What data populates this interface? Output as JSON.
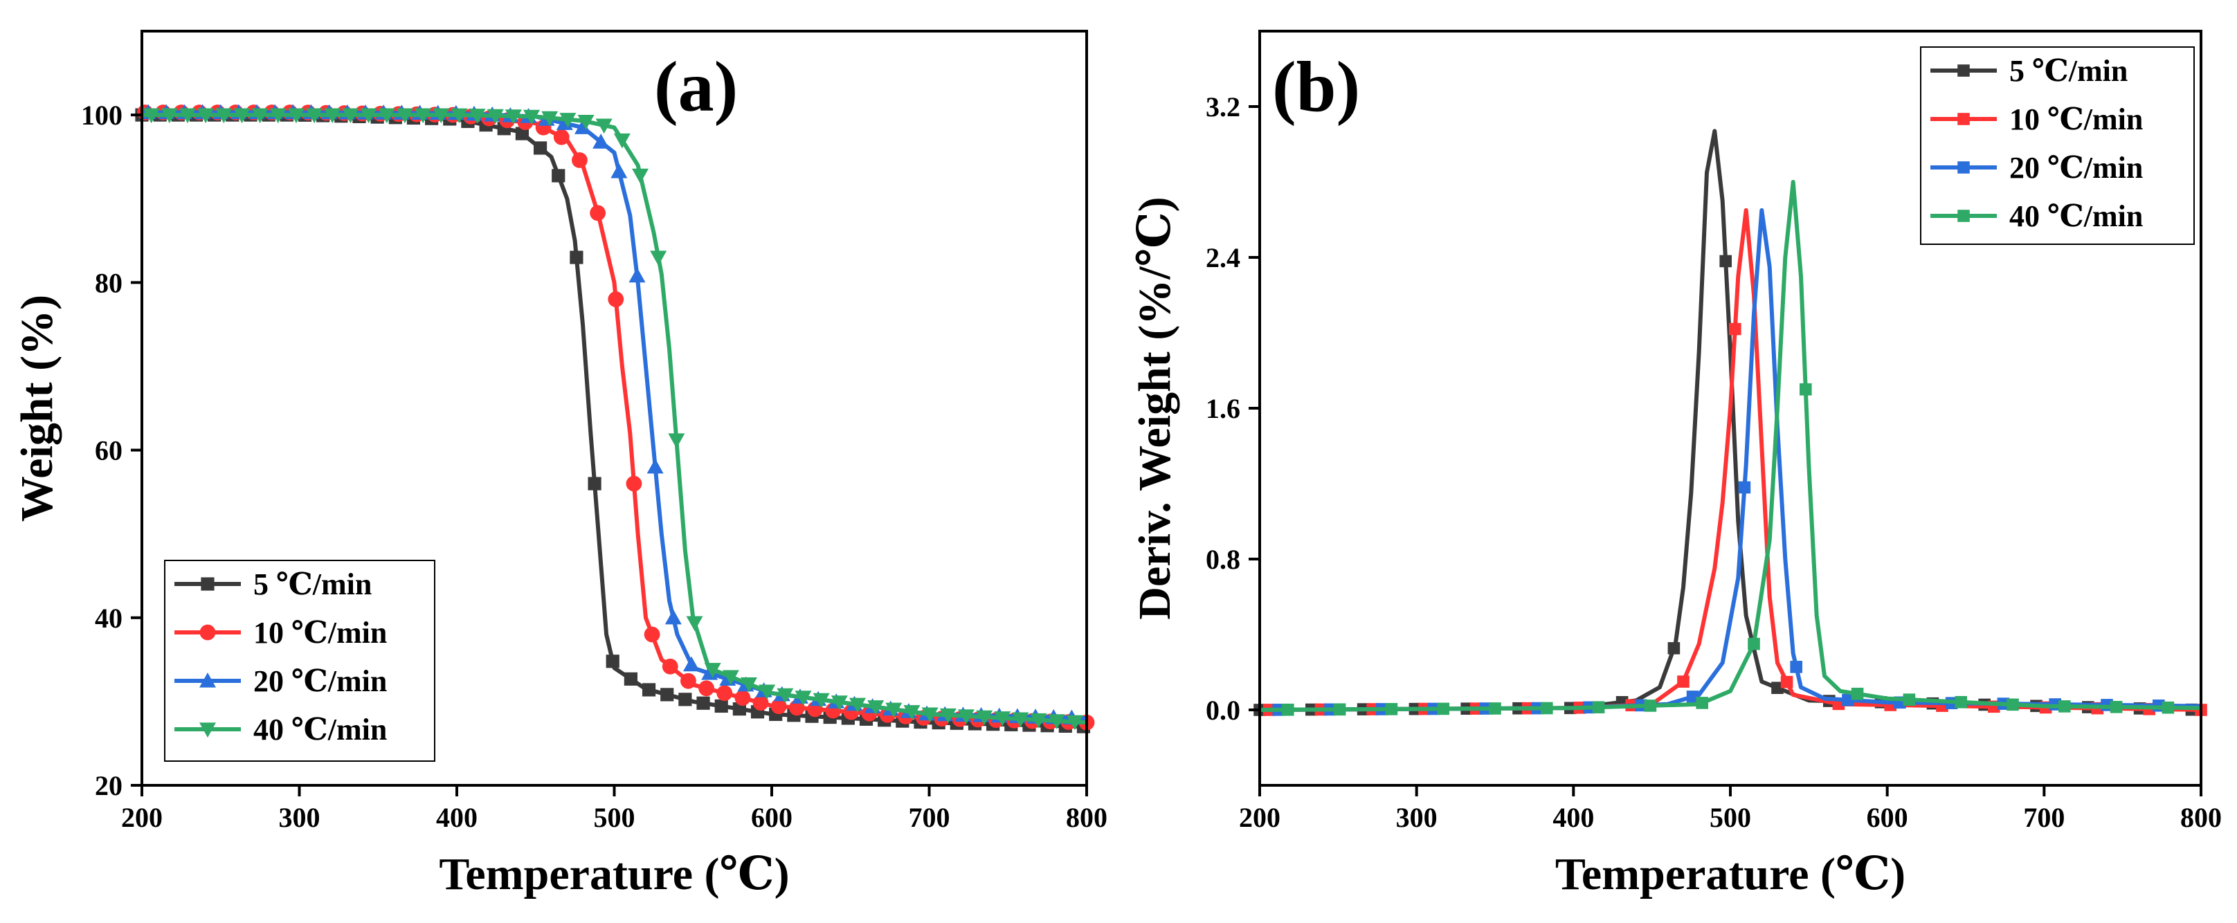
{
  "figure": {
    "panel_a_label": "(a)",
    "panel_b_label": "(b)"
  },
  "chart_data": [
    {
      "type": "line",
      "panel": "(a)",
      "xlabel": "Temperature (℃)",
      "ylabel": "Weight (%)",
      "xlim": [
        200,
        800
      ],
      "ylim": [
        20,
        110
      ],
      "xticks": [
        200,
        300,
        400,
        500,
        600,
        700,
        800
      ],
      "yticks": [
        20,
        40,
        60,
        80,
        100
      ],
      "grid": false,
      "legend_position": "bottom-left",
      "series": [
        {
          "name": "5 ℃/min",
          "color": "#3a3a3a",
          "marker": "square",
          "x": [
            200,
            300,
            400,
            440,
            460,
            470,
            475,
            480,
            485,
            490,
            495,
            500,
            520,
            550,
            600,
            700,
            800
          ],
          "y": [
            100,
            100,
            99.5,
            98,
            95,
            90,
            85,
            75,
            62,
            50,
            38,
            34,
            31.5,
            30,
            28.5,
            27.5,
            27
          ]
        },
        {
          "name": "10 ℃/min",
          "color": "#ff3333",
          "marker": "circle",
          "x": [
            200,
            300,
            400,
            450,
            470,
            480,
            490,
            500,
            505,
            510,
            515,
            520,
            530,
            550,
            600,
            700,
            800
          ],
          "y": [
            100.3,
            100.3,
            100,
            99,
            97,
            94,
            88,
            80,
            70,
            62,
            50,
            40,
            35,
            32,
            29.5,
            28,
            27.5
          ]
        },
        {
          "name": "20 ℃/min",
          "color": "#2a6fdb",
          "marker": "triangle-up",
          "x": [
            200,
            300,
            400,
            450,
            480,
            500,
            510,
            515,
            520,
            525,
            530,
            535,
            540,
            550,
            600,
            700,
            800
          ],
          "y": [
            100.3,
            100.3,
            100.2,
            99.8,
            98.5,
            95.5,
            88,
            80,
            70,
            60,
            50,
            42,
            38,
            34,
            31,
            28.5,
            28
          ]
        },
        {
          "name": "40 ℃/min",
          "color": "#2eaa66",
          "marker": "triangle-down",
          "x": [
            200,
            300,
            400,
            450,
            480,
            500,
            515,
            525,
            530,
            535,
            540,
            545,
            550,
            560,
            600,
            700,
            800
          ],
          "y": [
            100,
            100,
            100,
            99.8,
            99.3,
            98.5,
            94,
            86,
            81,
            72,
            60,
            48,
            40,
            34,
            31,
            28.5,
            27.5
          ]
        }
      ]
    },
    {
      "type": "line",
      "panel": "(b)",
      "xlabel": "Temperature (℃)",
      "ylabel": "Deriv. Weight (%/℃)",
      "xlim": [
        200,
        800
      ],
      "ylim": [
        -0.4,
        3.6
      ],
      "xticks": [
        200,
        300,
        400,
        500,
        600,
        700,
        800
      ],
      "yticks": [
        "0.0",
        "0.8",
        "1.6",
        "2.4",
        "3.2"
      ],
      "grid": false,
      "legend_position": "top-right",
      "series": [
        {
          "name": "5 ℃/min",
          "color": "#3a3a3a",
          "marker": "square",
          "x": [
            200,
            400,
            440,
            455,
            465,
            470,
            475,
            480,
            485,
            490,
            495,
            500,
            505,
            510,
            520,
            550,
            800
          ],
          "y": [
            0,
            0.01,
            0.05,
            0.12,
            0.35,
            0.65,
            1.15,
            1.9,
            2.85,
            3.07,
            2.7,
            1.9,
            1.0,
            0.5,
            0.15,
            0.05,
            0
          ]
        },
        {
          "name": "10 ℃/min",
          "color": "#ff3333",
          "marker": "square",
          "x": [
            200,
            400,
            450,
            470,
            480,
            490,
            495,
            500,
            505,
            510,
            515,
            520,
            525,
            530,
            540,
            570,
            800
          ],
          "y": [
            0,
            0.01,
            0.03,
            0.15,
            0.35,
            0.75,
            1.1,
            1.6,
            2.3,
            2.65,
            2.2,
            1.4,
            0.6,
            0.25,
            0.08,
            0.03,
            0
          ]
        },
        {
          "name": "20 ℃/min",
          "color": "#2a6fdb",
          "marker": "square",
          "x": [
            200,
            400,
            460,
            480,
            495,
            505,
            510,
            515,
            520,
            525,
            530,
            535,
            540,
            545,
            560,
            600,
            800
          ],
          "y": [
            0,
            0.01,
            0.03,
            0.08,
            0.25,
            0.7,
            1.3,
            2.1,
            2.65,
            2.35,
            1.5,
            0.8,
            0.3,
            0.12,
            0.06,
            0.04,
            0.02
          ]
        },
        {
          "name": "40 ℃/min",
          "color": "#2eaa66",
          "marker": "square",
          "x": [
            200,
            400,
            480,
            500,
            515,
            525,
            530,
            535,
            540,
            545,
            550,
            555,
            560,
            570,
            600,
            700,
            800
          ],
          "y": [
            0,
            0.01,
            0.03,
            0.1,
            0.35,
            0.9,
            1.6,
            2.4,
            2.8,
            2.3,
            1.3,
            0.5,
            0.18,
            0.1,
            0.06,
            0.02,
            0.01
          ]
        }
      ]
    }
  ]
}
